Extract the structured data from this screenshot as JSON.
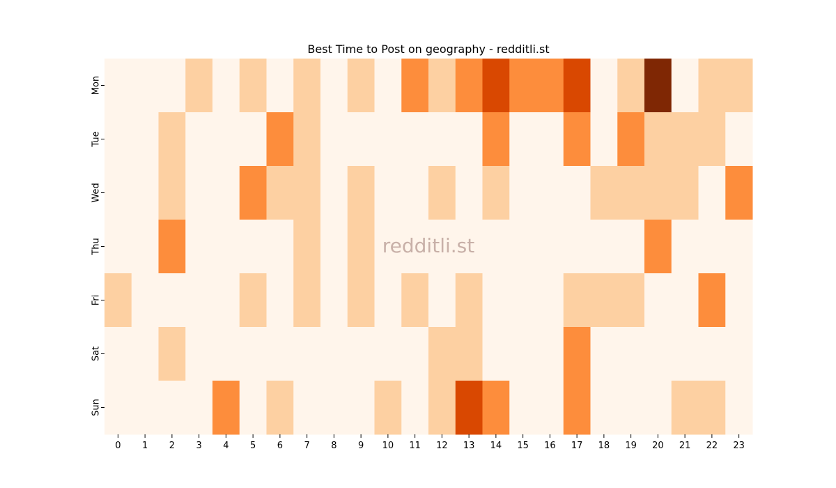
{
  "chart_data": {
    "type": "heatmap",
    "title": "Best Time to Post on geography - redditli.st",
    "xlabel": "",
    "ylabel": "",
    "x": [
      "0",
      "1",
      "2",
      "3",
      "4",
      "5",
      "6",
      "7",
      "8",
      "9",
      "10",
      "11",
      "12",
      "13",
      "14",
      "15",
      "16",
      "17",
      "18",
      "19",
      "20",
      "21",
      "22",
      "23"
    ],
    "y": [
      "Mon",
      "Tue",
      "Wed",
      "Thu",
      "Fri",
      "Sat",
      "Sun"
    ],
    "values": [
      [
        0,
        0,
        0,
        1,
        0,
        1,
        0,
        1,
        0,
        1,
        0,
        2,
        1,
        2,
        3,
        2,
        2,
        3,
        0,
        1,
        4,
        0,
        1,
        1
      ],
      [
        0,
        0,
        1,
        0,
        0,
        0,
        2,
        1,
        0,
        0,
        0,
        0,
        0,
        0,
        2,
        0,
        0,
        2,
        0,
        2,
        1,
        1,
        1,
        0
      ],
      [
        0,
        0,
        1,
        0,
        0,
        2,
        1,
        1,
        0,
        1,
        0,
        0,
        1,
        0,
        1,
        0,
        0,
        0,
        1,
        1,
        1,
        1,
        0,
        2
      ],
      [
        0,
        0,
        2,
        0,
        0,
        0,
        0,
        1,
        0,
        1,
        0,
        0,
        0,
        0,
        0,
        0,
        0,
        0,
        0,
        0,
        2,
        0,
        0,
        0
      ],
      [
        1,
        0,
        0,
        0,
        0,
        1,
        0,
        1,
        0,
        1,
        0,
        1,
        0,
        1,
        0,
        0,
        0,
        1,
        1,
        1,
        0,
        0,
        2,
        0
      ],
      [
        0,
        0,
        1,
        0,
        0,
        0,
        0,
        0,
        0,
        0,
        0,
        0,
        1,
        1,
        0,
        0,
        0,
        2,
        0,
        0,
        0,
        0,
        0,
        0
      ],
      [
        0,
        0,
        0,
        0,
        2,
        0,
        1,
        0,
        0,
        0,
        1,
        0,
        1,
        3,
        2,
        0,
        0,
        2,
        0,
        0,
        0,
        1,
        1,
        0
      ]
    ],
    "colormap": [
      "#fff5eb",
      "#fdd0a2",
      "#fd8d3c",
      "#d94801",
      "#7f2704"
    ],
    "colorbar": false,
    "watermark": "redditli.st"
  }
}
